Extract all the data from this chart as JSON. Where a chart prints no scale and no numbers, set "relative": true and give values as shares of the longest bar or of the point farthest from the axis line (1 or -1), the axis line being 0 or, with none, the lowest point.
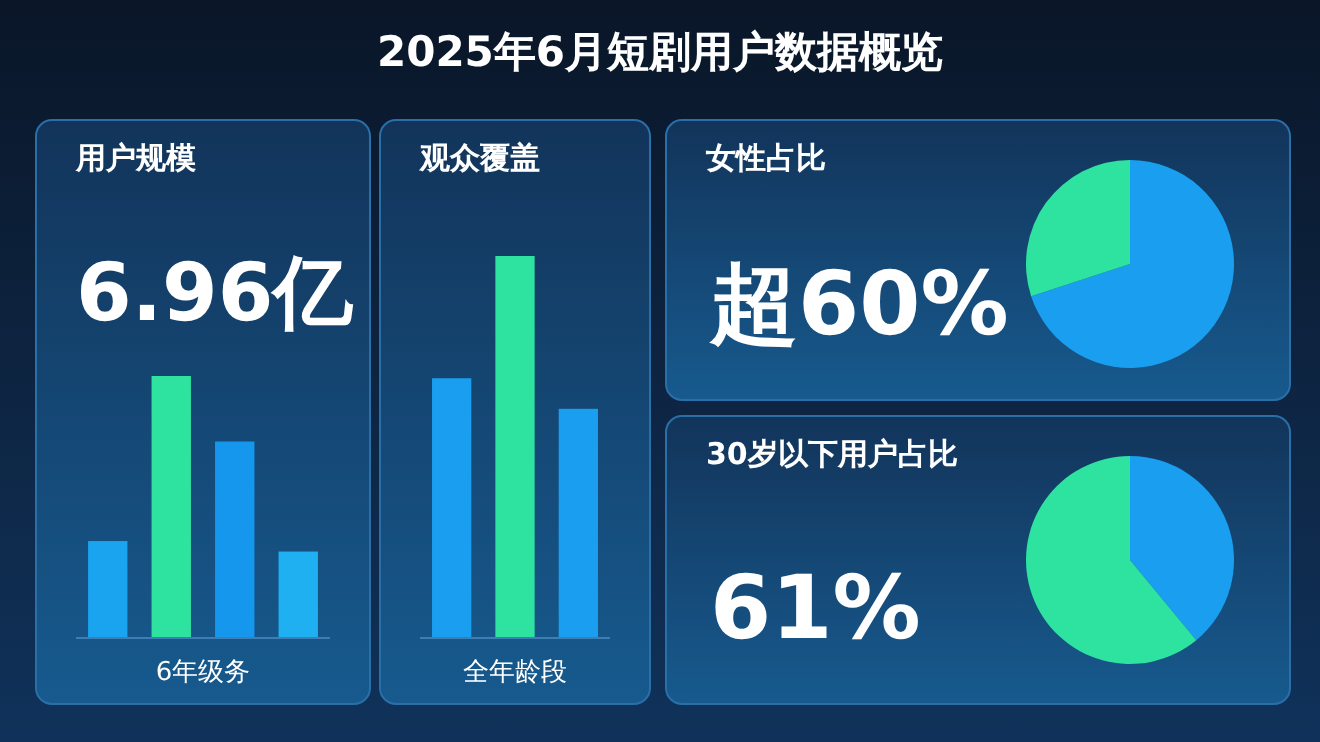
{
  "chart_data": [
    {
      "type": "other",
      "title": "2025年6月短剧用户数据概览"
    },
    {
      "type": "bar",
      "relative": true,
      "title": "用户规模",
      "annotations": [
        "6.96亿"
      ],
      "xlabel": "6年级务",
      "categories": [
        null,
        null,
        null,
        null
      ],
      "values": [
        0.37,
        1,
        0.75,
        0.33
      ],
      "colors": [
        "#1aa3ee",
        "#2ee3a0",
        "#1697ee",
        "#1eb0f0"
      ]
    },
    {
      "type": "bar",
      "relative": true,
      "title": "观众覆盖",
      "xlabel": "全年龄段",
      "categories": [
        null,
        null,
        null
      ],
      "values": [
        0.68,
        1,
        0.6
      ],
      "colors": [
        "#1a9ff0",
        "#2ee3a0",
        "#1a9ff0"
      ]
    },
    {
      "type": "pie",
      "title": "女性占比",
      "annotations": [
        "超60%"
      ],
      "categories": [
        null,
        null
      ],
      "values": [
        70,
        30
      ],
      "colors": [
        "#1a9ff0",
        "#2ee3a0"
      ]
    },
    {
      "type": "pie",
      "title": "30岁以下用户占比",
      "annotations": [
        "61%"
      ],
      "categories": [
        null,
        null
      ],
      "values": [
        39,
        61
      ],
      "colors": [
        "#1a9ff0",
        "#2ee3a0"
      ]
    }
  ]
}
